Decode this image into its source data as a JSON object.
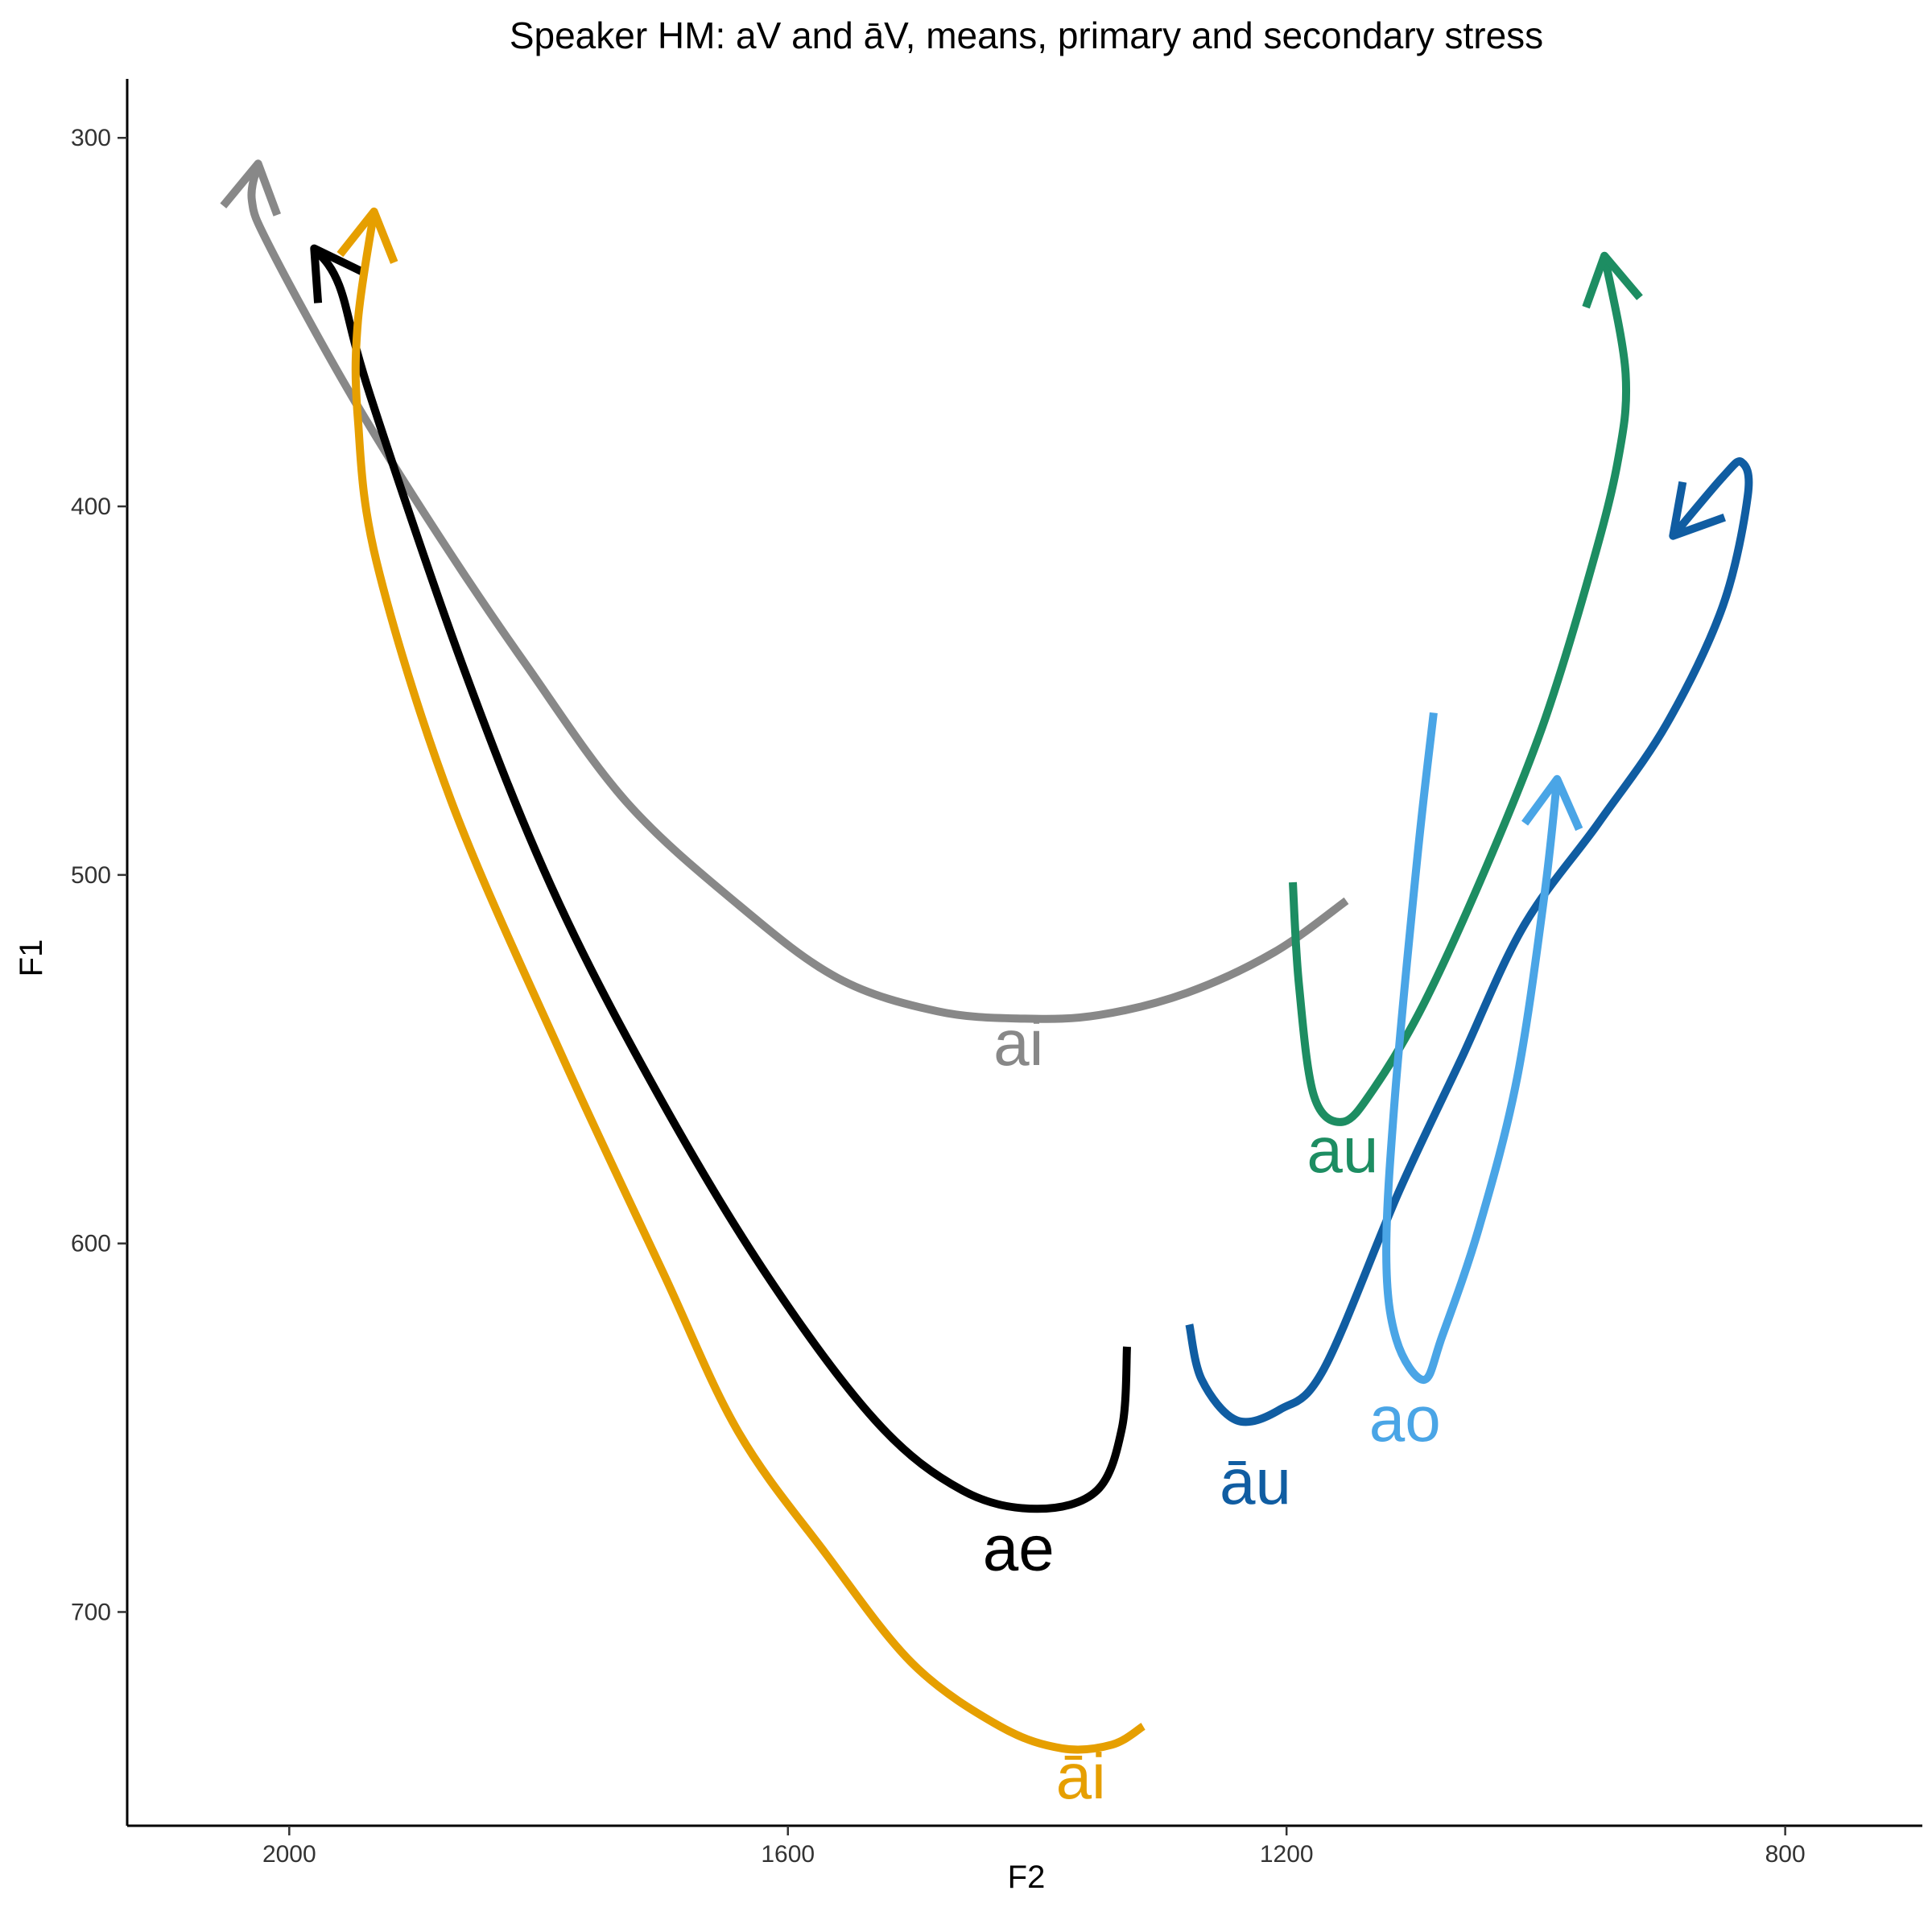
{
  "chart_data": {
    "type": "line",
    "title": "Speaker HM: aV and āV, means, primary and secondary stress",
    "xlabel": "F2",
    "ylabel": "F1",
    "x_reversed": true,
    "y_reversed": true,
    "xlim": [
      2130,
      690
    ],
    "ylim": [
      284,
      758
    ],
    "x_ticks": [
      2000,
      1600,
      1200,
      800
    ],
    "y_ticks": [
      300,
      400,
      500,
      600,
      700
    ],
    "grid": false,
    "legend": "none",
    "series": [
      {
        "name": "ai",
        "color": "#888888",
        "label_at": [
          1415,
          547
        ],
        "points": [
          [
            1152,
            507
          ],
          [
            1210,
            521
          ],
          [
            1280,
            532
          ],
          [
            1350,
            538
          ],
          [
            1410,
            539
          ],
          [
            1480,
            537
          ],
          [
            1560,
            528
          ],
          [
            1640,
            508
          ],
          [
            1730,
            480
          ],
          [
            1810,
            443
          ],
          [
            1880,
            408
          ],
          [
            1950,
            370
          ],
          [
            2015,
            330
          ],
          [
            2030,
            317
          ],
          [
            2025,
            307
          ]
        ]
      },
      {
        "name": "ae",
        "color": "#000000",
        "label_at": [
          1415,
          684
        ],
        "points": [
          [
            1328,
            628
          ],
          [
            1332,
            650
          ],
          [
            1352,
            667
          ],
          [
            1400,
            672
          ],
          [
            1460,
            667
          ],
          [
            1530,
            648
          ],
          [
            1620,
            607
          ],
          [
            1710,
            556
          ],
          [
            1790,
            503
          ],
          [
            1860,
            444
          ],
          [
            1935,
            370
          ],
          [
            1960,
            340
          ],
          [
            1980,
            330
          ]
        ]
      },
      {
        "name": "āi",
        "color": "#E69F00",
        "label_at": [
          1365,
          746
        ],
        "points": [
          [
            1315,
            731
          ],
          [
            1340,
            736
          ],
          [
            1380,
            737
          ],
          [
            1430,
            731
          ],
          [
            1500,
            714
          ],
          [
            1570,
            684
          ],
          [
            1640,
            651
          ],
          [
            1700,
            608
          ],
          [
            1780,
            550
          ],
          [
            1870,
            480
          ],
          [
            1930,
            415
          ],
          [
            1945,
            376
          ],
          [
            1945,
            350
          ],
          [
            1932,
            320
          ]
        ]
      },
      {
        "name": "au",
        "color": "#1D8D62",
        "label_at": [
          1155,
          576
        ],
        "points": [
          [
            1195,
            502
          ],
          [
            1190,
            530
          ],
          [
            1178,
            560
          ],
          [
            1155,
            567
          ],
          [
            1130,
            558
          ],
          [
            1090,
            535
          ],
          [
            1040,
            498
          ],
          [
            995,
            460
          ],
          [
            960,
            422
          ],
          [
            935,
            389
          ],
          [
            928,
            364
          ],
          [
            945,
            332
          ]
        ]
      },
      {
        "name": "āu",
        "color": "#105DA2",
        "label_at": [
          1225,
          666
        ],
        "points": [
          [
            1278,
            622
          ],
          [
            1268,
            637
          ],
          [
            1240,
            648
          ],
          [
            1205,
            645
          ],
          [
            1170,
            634
          ],
          [
            1110,
            586
          ],
          [
            1060,
            550
          ],
          [
            1010,
            514
          ],
          [
            950,
            486
          ],
          [
            895,
            459
          ],
          [
            850,
            427
          ],
          [
            830,
            397
          ],
          [
            835,
            388
          ],
          [
            850,
            392
          ],
          [
            890,
            408
          ]
        ]
      },
      {
        "name": "ao",
        "color": "#4AA5E6",
        "label_at": [
          1105,
          649
        ],
        "points": [
          [
            1082,
            456
          ],
          [
            1095,
            495
          ],
          [
            1113,
            560
          ],
          [
            1120,
            603
          ],
          [
            1112,
            626
          ],
          [
            1090,
            637
          ],
          [
            1075,
            625
          ],
          [
            1045,
            595
          ],
          [
            1015,
            555
          ],
          [
            993,
            505
          ],
          [
            983,
            474
          ]
        ]
      }
    ]
  }
}
